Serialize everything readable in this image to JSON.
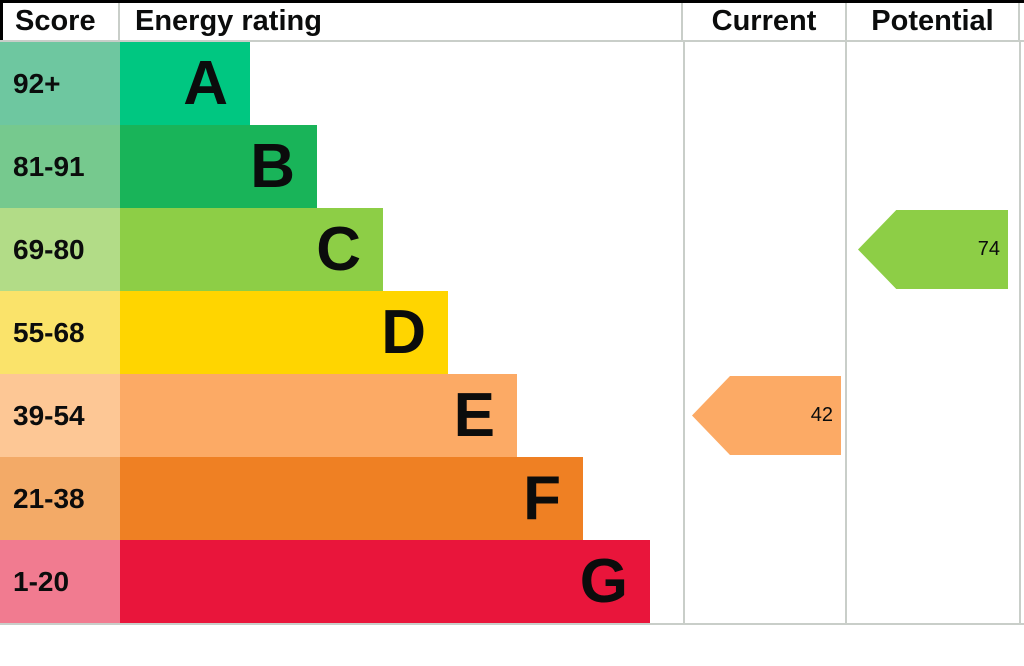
{
  "header": {
    "score": "Score",
    "energy_rating": "Energy rating",
    "current": "Current",
    "potential": "Potential"
  },
  "bands": [
    {
      "letter": "A",
      "score": "92+",
      "bar_color": "#00c781",
      "score_color": "#6ec7a0"
    },
    {
      "letter": "B",
      "score": "81-91",
      "bar_color": "#19b459",
      "score_color": "#76c98e"
    },
    {
      "letter": "C",
      "score": "69-80",
      "bar_color": "#8dce46",
      "score_color": "#b2dc87"
    },
    {
      "letter": "D",
      "score": "55-68",
      "bar_color": "#ffd500",
      "score_color": "#fae36a"
    },
    {
      "letter": "E",
      "score": "39-54",
      "bar_color": "#fcaa65",
      "score_color": "#fdc795"
    },
    {
      "letter": "F",
      "score": "21-38",
      "bar_color": "#ef8023",
      "score_color": "#f3aa67"
    },
    {
      "letter": "G",
      "score": "1-20",
      "bar_color": "#e9153b",
      "score_color": "#f17b90"
    }
  ],
  "current": {
    "value": "42",
    "band": "E",
    "color": "#fcaa65"
  },
  "potential": {
    "value": "74",
    "band": "C",
    "color": "#8dce46"
  },
  "chart_data": {
    "type": "bar",
    "title": "Energy rating",
    "categories": [
      "A",
      "B",
      "C",
      "D",
      "E",
      "F",
      "G"
    ],
    "score_ranges": [
      "92+",
      "81-91",
      "69-80",
      "55-68",
      "39-54",
      "21-38",
      "1-20"
    ],
    "band_colors": [
      "#00c781",
      "#19b459",
      "#8dce46",
      "#ffd500",
      "#fcaa65",
      "#ef8023",
      "#e9153b"
    ],
    "bar_lengths_relative": [
      1,
      2,
      3,
      4,
      5,
      6,
      7
    ],
    "columns": [
      "Score",
      "Energy rating",
      "Current",
      "Potential"
    ],
    "markers": [
      {
        "name": "Current",
        "value": 42,
        "band": "E",
        "color": "#fcaa65"
      },
      {
        "name": "Potential",
        "value": 74,
        "band": "C",
        "color": "#8dce46"
      }
    ],
    "legend_position": "none",
    "grid": false
  }
}
